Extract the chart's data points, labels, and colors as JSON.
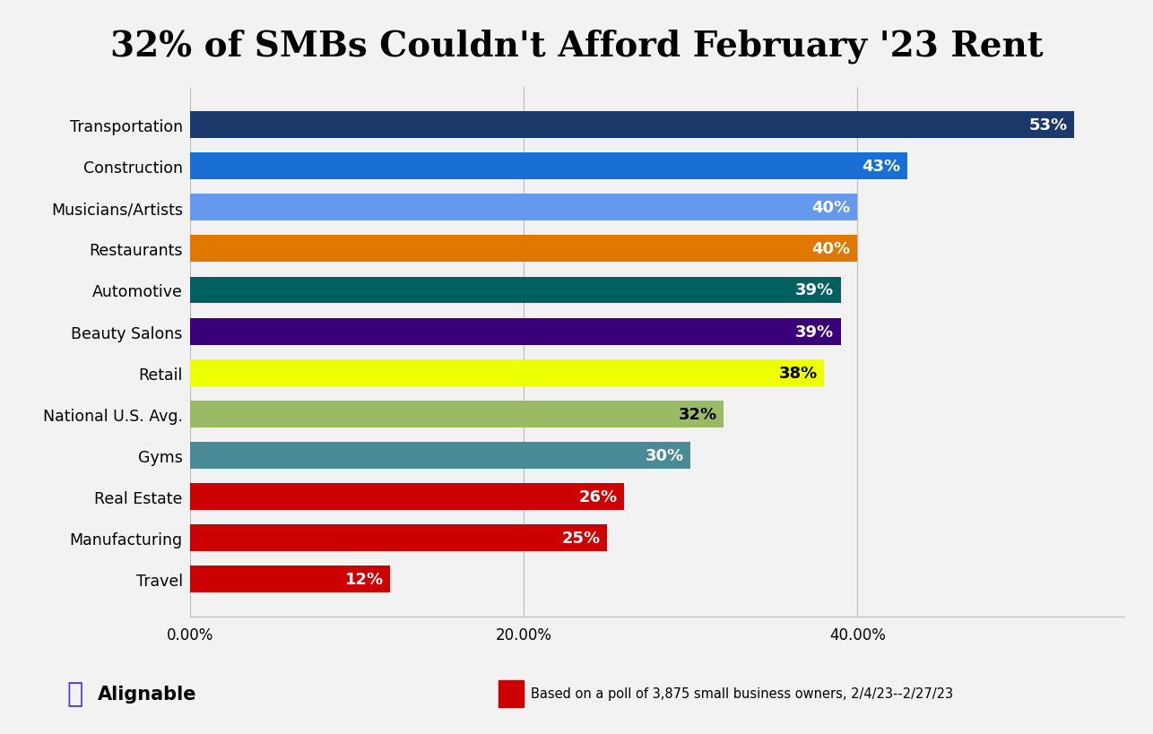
{
  "title": "32% of SMBs Couldn't Afford February '23 Rent",
  "categories": [
    "Transportation",
    "Construction",
    "Musicians/Artists",
    "Restaurants",
    "Automotive",
    "Beauty Salons",
    "Retail",
    "National U.S. Avg.",
    "Gyms",
    "Real Estate",
    "Manufacturing",
    "Travel"
  ],
  "values": [
    53,
    43,
    40,
    40,
    39,
    39,
    38,
    32,
    30,
    26,
    25,
    12
  ],
  "bar_colors": [
    "#1b3a6b",
    "#1a6fd4",
    "#6699ee",
    "#e07800",
    "#005f5f",
    "#3a007a",
    "#eeff00",
    "#99bb66",
    "#4a8a96",
    "#cc0000",
    "#cc0000",
    "#cc0000"
  ],
  "label_colors": [
    "white",
    "white",
    "white",
    "white",
    "white",
    "white",
    "black",
    "black",
    "white",
    "white",
    "white",
    "white"
  ],
  "pct_labels": [
    "53%",
    "43%",
    "40%",
    "40%",
    "39%",
    "39%",
    "38%",
    "32%",
    "30%",
    "26%",
    "25%",
    "12%"
  ],
  "xlim": [
    0,
    56
  ],
  "xtick_values": [
    0,
    20,
    40
  ],
  "xtick_labels": [
    "0.00%",
    "20.00%",
    "40.00%"
  ],
  "background_color": "#f2f2f2",
  "grid_color": "#bbbbbb",
  "footnote": "Based on a poll of 3,875 small business owners, 2/4/23--2/27/23",
  "footnote_color": "#cc0000",
  "title_fontsize": 28,
  "label_fontsize": 12.5,
  "bar_label_fontsize": 13,
  "bar_height": 0.65
}
